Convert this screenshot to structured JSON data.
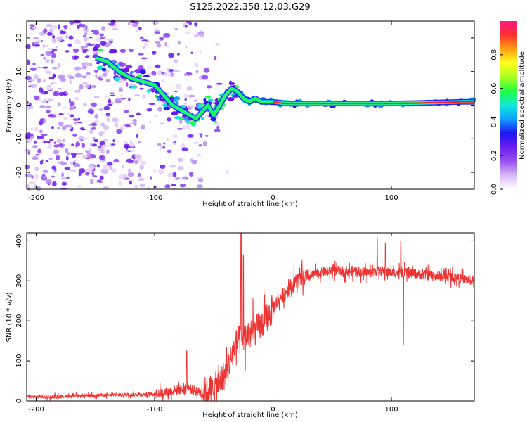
{
  "figure_title": "S125.2022.358.12.03.G29",
  "colors": {
    "line": "#ee3333",
    "spectrum_track": "#ff2020",
    "colorbar": [
      "#ffffff",
      "#d8b8f8",
      "#9a50ee",
      "#6a1cf0",
      "#1a18f0",
      "#10a0ff",
      "#10e8d8",
      "#20ff40",
      "#a8ff20",
      "#ffff20",
      "#ffa010",
      "#ff3030",
      "#ff1880"
    ]
  },
  "chart_data": [
    {
      "type": "heatmap",
      "title": "",
      "xlabel": "Height of straight line (km)",
      "ylabel": "Frequency (Hz)",
      "xlim": [
        -208,
        170
      ],
      "ylim": [
        -25,
        25
      ],
      "xticks": [
        -200,
        -100,
        0,
        100
      ],
      "yticks": [
        -20,
        -10,
        0,
        10,
        20
      ],
      "colorbar": {
        "label": "Normalized spectral amplitude",
        "range": [
          0,
          1
        ],
        "ticks": [
          0.0,
          0.2,
          0.4,
          0.6,
          0.8
        ]
      },
      "dominant_track": {
        "x": [
          -150,
          -140,
          -130,
          -120,
          -110,
          -100,
          -95,
          -90,
          -85,
          -80,
          -75,
          -70,
          -65,
          -60,
          -55,
          -50,
          -45,
          -40,
          -35,
          -30,
          -25,
          -20,
          -15,
          -10,
          -5,
          0,
          10,
          20,
          40,
          60,
          80,
          90,
          100,
          120,
          140,
          160,
          170
        ],
        "y": [
          14,
          13,
          10,
          8,
          7,
          6,
          4,
          2,
          0,
          -1,
          -2,
          -3,
          -4,
          -2,
          0,
          -3,
          0,
          3,
          5,
          4,
          2,
          1,
          2,
          1,
          1,
          1,
          0.5,
          0.5,
          0.5,
          0.5,
          0.5,
          0.5,
          0.5,
          0.6,
          0.8,
          1,
          1
        ]
      }
    },
    {
      "type": "line",
      "title": "",
      "xlabel": "Height of straight line (km)",
      "ylabel": "SNR (10 * v/v)",
      "xlim": [
        -208,
        170
      ],
      "ylim": [
        0,
        420
      ],
      "xticks": [
        -200,
        -100,
        0,
        100
      ],
      "yticks": [
        0,
        100,
        200,
        300,
        400
      ],
      "series": [
        {
          "x": [
            -208,
            -190,
            -170,
            -150,
            -130,
            -110,
            -100,
            -90,
            -80,
            -70,
            -60,
            -50,
            -45,
            -40,
            -35,
            -30,
            -25,
            -20,
            -15,
            -10,
            -5,
            0,
            5,
            10,
            15,
            20,
            25,
            30,
            40,
            50,
            60,
            70,
            80,
            90,
            100,
            110,
            120,
            130,
            140,
            150,
            160,
            170
          ],
          "values": [
            10,
            10,
            12,
            14,
            15,
            16,
            18,
            22,
            28,
            30,
            20,
            30,
            45,
            70,
            110,
            150,
            155,
            165,
            175,
            190,
            210,
            230,
            255,
            270,
            285,
            300,
            305,
            310,
            320,
            325,
            325,
            325,
            320,
            325,
            320,
            320,
            318,
            315,
            312,
            310,
            305,
            300
          ]
        }
      ],
      "annotations": {
        "spikes": [
          {
            "x": -73,
            "y": 125
          },
          {
            "x": -27,
            "y": 420
          },
          {
            "x": -25,
            "y": 365
          },
          {
            "x": 88,
            "y": 405
          },
          {
            "x": 95,
            "y": 395
          },
          {
            "x": 108,
            "y": 400
          },
          {
            "x": 110,
            "y": 140
          }
        ]
      }
    }
  ]
}
